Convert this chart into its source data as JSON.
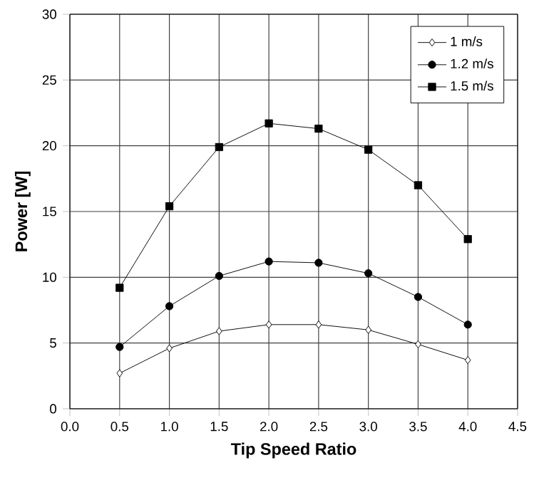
{
  "chart_data": {
    "type": "line",
    "xlabel": "Tip Speed Ratio",
    "ylabel": "Power [W]",
    "x": [
      0.5,
      1.0,
      1.5,
      2.0,
      2.5,
      3.0,
      3.5,
      4.0
    ],
    "series": [
      {
        "name": "1 m/s",
        "color": "#000000",
        "marker": "diamond",
        "values": [
          2.7,
          4.6,
          5.9,
          6.4,
          6.4,
          6.0,
          4.9,
          3.7
        ]
      },
      {
        "name": "1.2 m/s",
        "color": "#000000",
        "marker": "circle",
        "values": [
          4.7,
          7.8,
          10.1,
          11.2,
          11.1,
          10.3,
          8.5,
          6.4
        ]
      },
      {
        "name": "1.5 m/s",
        "color": "#000000",
        "marker": "square",
        "values": [
          9.2,
          15.4,
          19.9,
          21.7,
          21.3,
          19.7,
          17.0,
          12.9
        ]
      }
    ],
    "xlim": [
      0,
      4.5
    ],
    "ylim": [
      0,
      30
    ],
    "xticks": [
      {
        "value": 0,
        "label": "0.0"
      },
      {
        "value": 0.5,
        "label": "0.5"
      },
      {
        "value": 1,
        "label": "1.0"
      },
      {
        "value": 1.5,
        "label": "1.5"
      },
      {
        "value": 2,
        "label": "2.0"
      },
      {
        "value": 2.5,
        "label": "2.5"
      },
      {
        "value": 3,
        "label": "3.0"
      },
      {
        "value": 3.5,
        "label": "3.5"
      },
      {
        "value": 4,
        "label": "4.0"
      },
      {
        "value": 4.5,
        "label": "4.5"
      }
    ],
    "yticks": [
      0,
      5,
      10,
      15,
      20,
      25,
      30
    ],
    "grid": true,
    "legend": "top right",
    "line_style": "solid"
  }
}
